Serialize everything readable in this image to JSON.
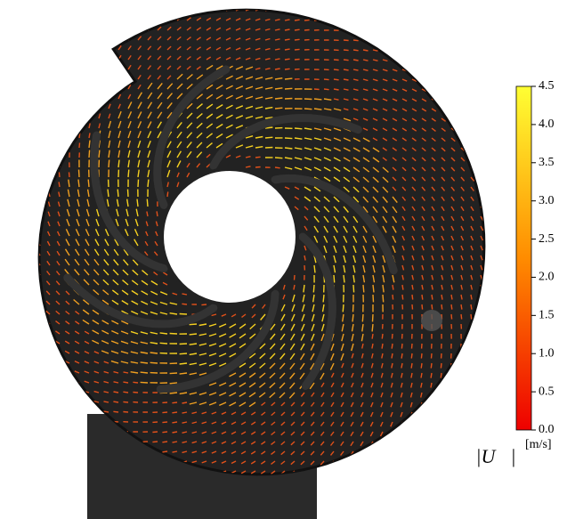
{
  "colorbar": {
    "label": "|U⃗|",
    "unit": "[m/s]",
    "range": [
      0,
      4.5
    ],
    "colors": [
      "#ee0000",
      "#ff8c00",
      "#ffff33"
    ],
    "ticks": [
      {
        "value": 0,
        "label": "0.0"
      },
      {
        "value": 0.5,
        "label": "0.5"
      },
      {
        "value": 1,
        "label": "1.0"
      },
      {
        "value": 1.5,
        "label": "1.5"
      },
      {
        "value": 2,
        "label": "2.0"
      },
      {
        "value": 2.5,
        "label": "2.5"
      },
      {
        "value": 3,
        "label": "3.0"
      },
      {
        "value": 3.5,
        "label": "3.5"
      },
      {
        "value": 4,
        "label": "4.0"
      },
      {
        "value": 4.5,
        "label": "4.5"
      }
    ]
  }
}
